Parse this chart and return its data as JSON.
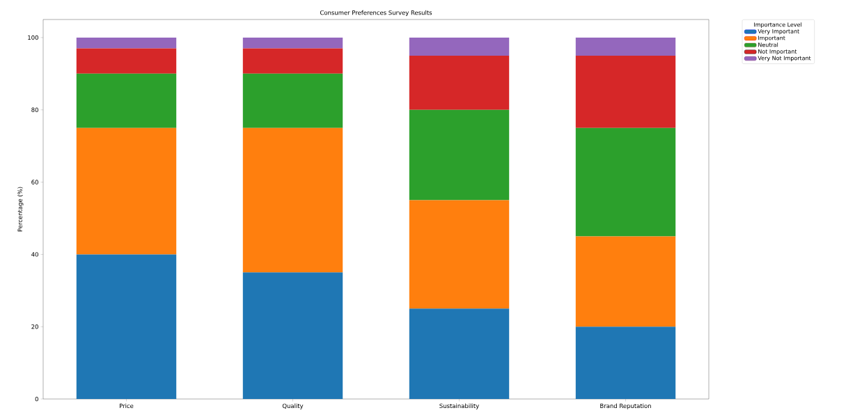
{
  "chart_data": {
    "type": "bar",
    "stacked": true,
    "title": "Consumer Preferences Survey Results",
    "ylabel": "Percentage (%)",
    "legend_title": "Importance Level",
    "categories": [
      "Price",
      "Quality",
      "Sustainability",
      "Brand Reputation"
    ],
    "series": [
      {
        "name": "Very Important",
        "color": "#1f77b4",
        "values": [
          40,
          35,
          25,
          20
        ]
      },
      {
        "name": "Important",
        "color": "#ff7f0e",
        "values": [
          35,
          40,
          30,
          25
        ]
      },
      {
        "name": "Neutral",
        "color": "#2ca02c",
        "values": [
          15,
          15,
          25,
          30
        ]
      },
      {
        "name": "Not Important",
        "color": "#d62728",
        "values": [
          7,
          7,
          15,
          20
        ]
      },
      {
        "name": "Very Not Important",
        "color": "#9467bd",
        "values": [
          3,
          3,
          5,
          5
        ]
      }
    ],
    "ylim": [
      0,
      105
    ],
    "yticks": [
      0,
      20,
      40,
      60,
      80,
      100
    ],
    "legend": "top right",
    "grid": false
  }
}
